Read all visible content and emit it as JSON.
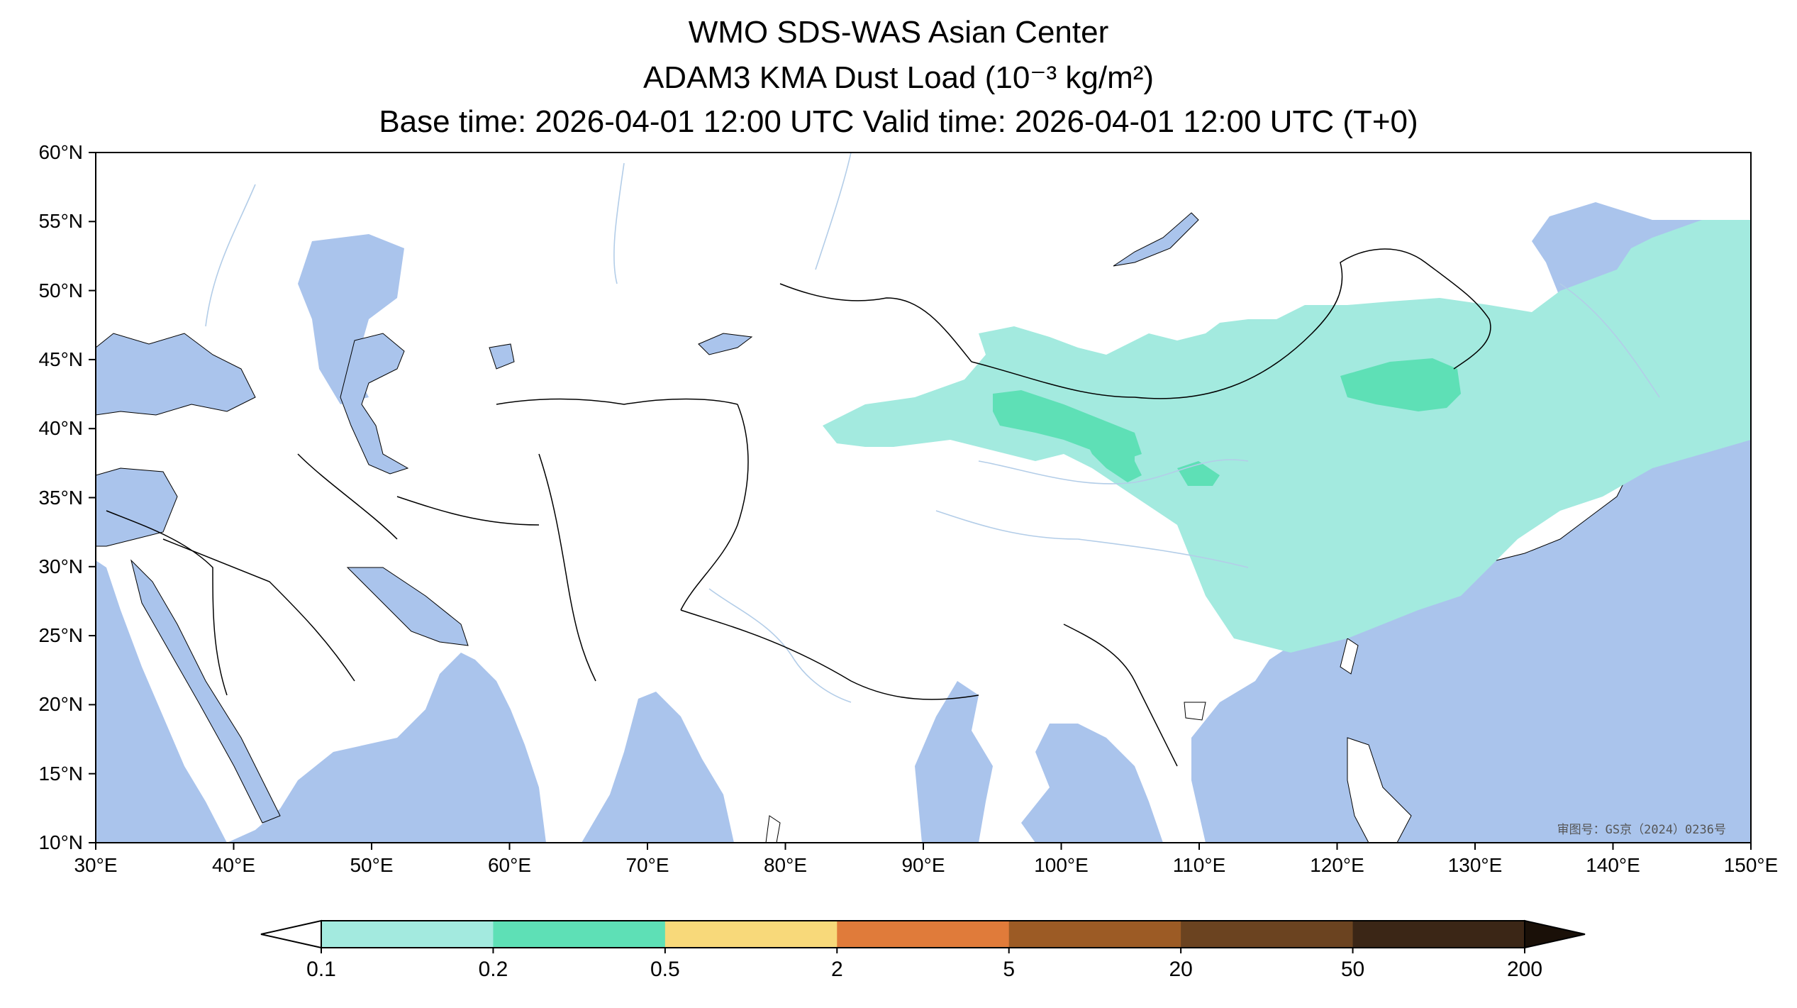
{
  "title": {
    "line1": "WMO SDS-WAS Asian Center",
    "line2": "ADAM3 KMA Dust Load (10⁻³ kg/m²)",
    "line3": "Base time: 2026-04-01 12:00 UTC Valid time: 2026-04-01 12:00 UTC (T+0)"
  },
  "map": {
    "lon_range": [
      30,
      150
    ],
    "lat_range": [
      10,
      60
    ],
    "lat_ticks": [
      "60°N",
      "55°N",
      "50°N",
      "45°N",
      "40°N",
      "35°N",
      "30°N",
      "25°N",
      "20°N",
      "15°N",
      "10°N"
    ],
    "lon_ticks": [
      "30°E",
      "40°E",
      "50°E",
      "60°E",
      "70°E",
      "80°E",
      "90°E",
      "100°E",
      "110°E",
      "120°E",
      "130°E",
      "140°E",
      "150°E"
    ],
    "colors": {
      "ocean": "#aac4ec",
      "land": "#ffffff",
      "river": "#b3cde8",
      "border": "#000000"
    },
    "watermark": "审图号：GS京（2024）0236号"
  },
  "colorbar": {
    "labels": [
      "0.1",
      "0.2",
      "0.5",
      "2",
      "5",
      "20",
      "50",
      "200"
    ],
    "colors": [
      "#a3eadf",
      "#5ee0b6",
      "#f8d97a",
      "#e07b3a",
      "#9c5b25",
      "#6b4320",
      "#3b2616"
    ],
    "extend_low_color": "#ffffff",
    "extend_high_color": "#1a1008"
  },
  "dust": {
    "levels": [
      {
        "range": "0.1-0.2",
        "color": "#a3eadf"
      },
      {
        "range": "0.2-0.5",
        "color": "#5ee0b6"
      }
    ]
  }
}
